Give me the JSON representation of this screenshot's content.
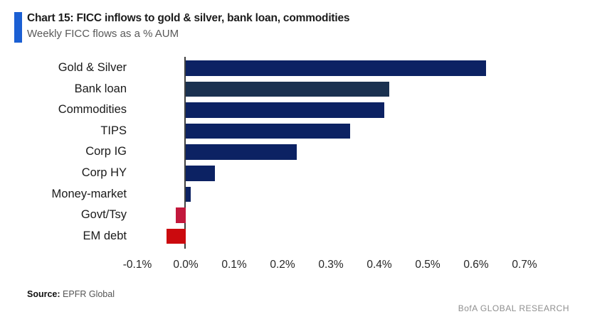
{
  "header": {
    "title": "Chart 15: FICC inflows to gold & silver, bank loan, commodities",
    "subtitle": "Weekly FICC flows as a % AUM",
    "accent_color": "#1b5fd3"
  },
  "chart_data": {
    "type": "bar",
    "orientation": "horizontal",
    "title": "Chart 15: FICC inflows to gold & silver, bank loan, commodities",
    "subtitle": "Weekly FICC flows as a % AUM",
    "categories": [
      "Gold & Silver",
      "Bank loan",
      "Commodities",
      "TIPS",
      "Corp IG",
      "Corp HY",
      "Money-market",
      "Govt/Tsy",
      "EM debt"
    ],
    "values": [
      0.62,
      0.42,
      0.41,
      0.34,
      0.23,
      0.06,
      0.01,
      -0.02,
      -0.04
    ],
    "unit": "% of AUM",
    "bar_colors": [
      "#0c2263",
      "#1a3150",
      "#0c2263",
      "#0c2263",
      "#0c2263",
      "#0c2263",
      "#0c2263",
      "#c2183c",
      "#cb0a0e"
    ],
    "x_ticks": [
      "-0.1%",
      "0.0%",
      "0.1%",
      "0.2%",
      "0.3%",
      "0.4%",
      "0.5%",
      "0.6%",
      "0.7%"
    ],
    "x_tick_values": [
      -0.1,
      0.0,
      0.1,
      0.2,
      0.3,
      0.4,
      0.5,
      0.6,
      0.7
    ],
    "xlim": [
      -0.15,
      0.75
    ],
    "grid": false,
    "legend": false,
    "axis_line_color": "#404040"
  },
  "footer": {
    "source_label": "Source:",
    "source_value": "EPFR Global",
    "brand": "BofA GLOBAL RESEARCH"
  }
}
